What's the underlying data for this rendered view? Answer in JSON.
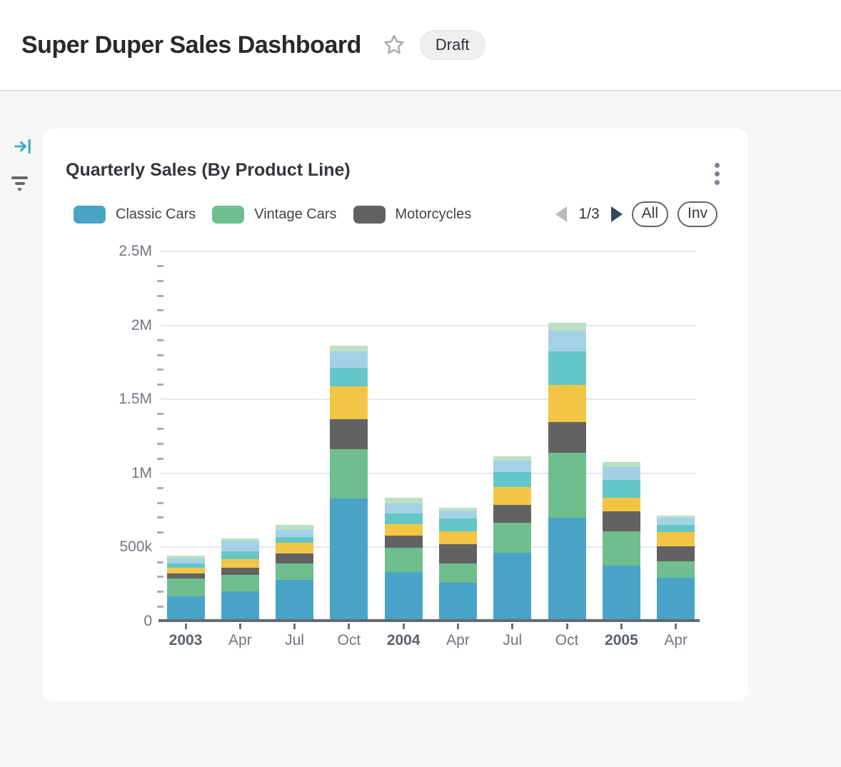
{
  "header": {
    "title": "Super Duper Sales Dashboard",
    "badge": "Draft"
  },
  "card": {
    "title": "Quarterly Sales (By Product Line)",
    "legend": [
      {
        "label": "Classic Cars",
        "color": "#49A3C7"
      },
      {
        "label": "Vintage Cars",
        "color": "#6FBE8D"
      },
      {
        "label": "Motorcycles",
        "color": "#626262"
      }
    ],
    "pagination": {
      "page_indicator": "1/3"
    },
    "buttons": {
      "all": "All",
      "inv": "Inv"
    }
  },
  "icons": {
    "star": "star-outline",
    "kebab": "vertical-three-dots",
    "rail_expand": "arrow-to-bar",
    "rail_filter": "filter"
  },
  "colors": {
    "page_bg": "#F6F6F7",
    "card_bg": "#FFFFFF",
    "gridline": "#E3E6F1",
    "axis_line": "#64696E",
    "accent_blue": "#38A6CE"
  },
  "chart_data": {
    "type": "bar",
    "stacked": true,
    "title": "Quarterly Sales (By Product Line)",
    "categories": [
      "2003",
      "Apr",
      "Jul",
      "Oct",
      "2004",
      "Apr",
      "Jul",
      "Oct",
      "2005",
      "Apr"
    ],
    "series": [
      {
        "name": "Classic Cars",
        "color": "#49A3C7",
        "values": [
          167000,
          204000,
          282000,
          829000,
          335000,
          263000,
          464000,
          698000,
          379000,
          295000
        ]
      },
      {
        "name": "Vintage Cars",
        "color": "#6FBE8D",
        "values": [
          123000,
          108000,
          109000,
          335000,
          161000,
          129000,
          201000,
          440000,
          230000,
          113000
        ]
      },
      {
        "name": "Motorcycles",
        "color": "#626262",
        "values": [
          32000,
          48000,
          68000,
          201000,
          81000,
          129000,
          121000,
          209000,
          134000,
          100000
        ]
      },
      {
        "name": "unlabeled-series-4-yellow",
        "color": "#F2C644",
        "values": [
          39000,
          58000,
          74000,
          225000,
          81000,
          88000,
          124000,
          253000,
          92000,
          94000
        ]
      },
      {
        "name": "unlabeled-series-5-teal",
        "color": "#65C6C8",
        "values": [
          29000,
          55000,
          35000,
          124000,
          72000,
          89000,
          97000,
          226000,
          121000,
          51000
        ]
      },
      {
        "name": "unlabeled-series-6-lightblue",
        "color": "#A4D2E4",
        "values": [
          37000,
          74000,
          52000,
          113000,
          65000,
          51000,
          77000,
          137000,
          84000,
          45000
        ]
      },
      {
        "name": "unlabeled-series-7-palegreen",
        "color": "#BCE0C5",
        "values": [
          18000,
          14000,
          32000,
          35000,
          40000,
          21000,
          29000,
          57000,
          37000,
          19000
        ]
      }
    ],
    "ylim": [
      0,
      2500000
    ],
    "yticks": [
      {
        "label": "0",
        "value": 0
      },
      {
        "label": "500k",
        "value": 500000
      },
      {
        "label": "1M",
        "value": 1000000
      },
      {
        "label": "1.5M",
        "value": 1500000
      },
      {
        "label": "2M",
        "value": 2000000
      },
      {
        "label": "2.5M",
        "value": 2500000
      }
    ],
    "minor_tick_step": 100000,
    "grid": true,
    "legend_position": "top",
    "legend_pages": 3,
    "legend_current_page": 1
  }
}
